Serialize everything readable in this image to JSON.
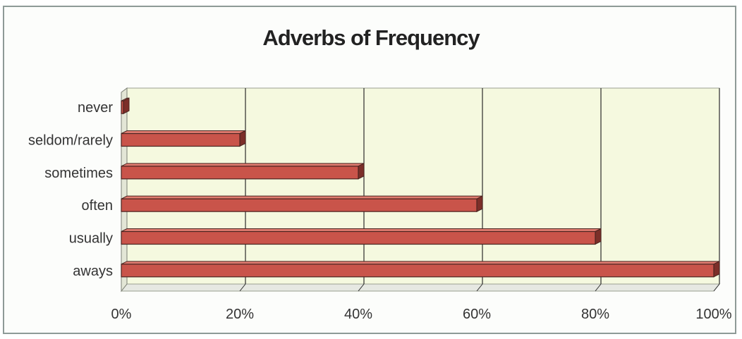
{
  "chart_data": {
    "type": "bar",
    "orientation": "horizontal",
    "title": "Adverbs of Frequency",
    "categories": [
      "aways",
      "usually",
      "often",
      "sometimes",
      "seldom/rarely",
      "never"
    ],
    "values": [
      100,
      80,
      60,
      40,
      20,
      0
    ],
    "unit": "%",
    "xlim": [
      0,
      100
    ],
    "xticks": [
      "0%",
      "20%",
      "40%",
      "60%",
      "80%",
      "100%"
    ],
    "grid": true,
    "legend": "none",
    "colors": {
      "bar": "#c9544a",
      "bar_top": "#e07c70",
      "bar_edge": "#4a2420",
      "plot_bg": "#f5f9df",
      "floor": "#e6e8e2",
      "gridline": "#2b2b2b"
    }
  }
}
